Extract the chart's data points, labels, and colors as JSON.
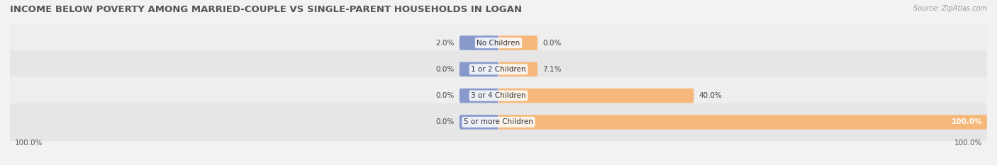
{
  "title": "INCOME BELOW POVERTY AMONG MARRIED-COUPLE VS SINGLE-PARENT HOUSEHOLDS IN LOGAN",
  "source": "Source: ZipAtlas.com",
  "categories": [
    "No Children",
    "1 or 2 Children",
    "3 or 4 Children",
    "5 or more Children"
  ],
  "married_values": [
    2.0,
    0.0,
    0.0,
    0.0
  ],
  "single_values": [
    0.0,
    7.1,
    40.0,
    100.0
  ],
  "married_color": "#8899cc",
  "single_color": "#f5b87a",
  "bg_color": "#f2f2f2",
  "row_bg_light": "#eeeeee",
  "row_bg_dark": "#e6e6e6",
  "max_value": 100.0,
  "min_bar_width": 8.0,
  "bar_height": 0.55,
  "left_label": "100.0%",
  "right_label": "100.0%",
  "title_fontsize": 9.5,
  "label_fontsize": 7.5,
  "bar_label_fontsize": 7.5,
  "cat_label_fontsize": 7.5,
  "source_fontsize": 7
}
